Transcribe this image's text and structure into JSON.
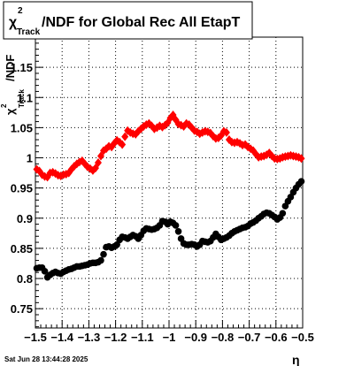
{
  "chart_data": {
    "type": "scatter",
    "title": {
      "chi_symbol": "χ",
      "superscript": "2",
      "subscript": "Track",
      "rest": "/NDF for Global Rec All EtapT"
    },
    "ylabel": {
      "chi_symbol": "χ",
      "superscript": "2",
      "subscript": "Track",
      "rest": "/NDF"
    },
    "xlabel": "η",
    "xlim": [
      -1.5,
      -0.5
    ],
    "ylim": [
      0.718,
      1.2
    ],
    "x_ticks": [
      -1.5,
      -1.4,
      -1.3,
      -1.2,
      -1.1,
      -1,
      -0.9,
      -0.8,
      -0.7,
      -0.6,
      -0.5
    ],
    "x_tick_labels": [
      "−1.5",
      "−1.4",
      "−1.3",
      "−1.2",
      "−1.1",
      "−1",
      "−0.9",
      "−0.8",
      "−0.7",
      "−0.6",
      "−0.5"
    ],
    "y_ticks": [
      0.75,
      0.8,
      0.85,
      0.9,
      0.95,
      1,
      1.05,
      1.1,
      1.15
    ],
    "y_tick_labels": [
      "0.75",
      "0.8",
      "0.85",
      "0.9",
      "0.95",
      "1",
      "1.05",
      "1.1",
      "1.15"
    ],
    "grid": true,
    "footer": "Sat Jun 28 13:44:28 2025",
    "series": [
      {
        "marker": "diamond",
        "color": "#ff0000",
        "x": [
          -1.495,
          -1.485,
          -1.475,
          -1.465,
          -1.455,
          -1.445,
          -1.435,
          -1.425,
          -1.415,
          -1.405,
          -1.395,
          -1.385,
          -1.375,
          -1.365,
          -1.355,
          -1.345,
          -1.335,
          -1.325,
          -1.315,
          -1.305,
          -1.295,
          -1.285,
          -1.275,
          -1.265,
          -1.255,
          -1.245,
          -1.235,
          -1.225,
          -1.215,
          -1.205,
          -1.195,
          -1.185,
          -1.175,
          -1.165,
          -1.155,
          -1.145,
          -1.135,
          -1.125,
          -1.115,
          -1.105,
          -1.095,
          -1.085,
          -1.075,
          -1.065,
          -1.055,
          -1.045,
          -1.035,
          -1.025,
          -1.015,
          -1.005,
          -0.995,
          -0.985,
          -0.975,
          -0.965,
          -0.955,
          -0.945,
          -0.935,
          -0.925,
          -0.915,
          -0.905,
          -0.895,
          -0.885,
          -0.875,
          -0.865,
          -0.855,
          -0.845,
          -0.835,
          -0.825,
          -0.815,
          -0.805,
          -0.795,
          -0.785,
          -0.775,
          -0.765,
          -0.755,
          -0.745,
          -0.735,
          -0.725,
          -0.715,
          -0.705,
          -0.695,
          -0.685,
          -0.675,
          -0.665,
          -0.655,
          -0.645,
          -0.635,
          -0.625,
          -0.615,
          -0.605,
          -0.595,
          -0.585,
          -0.575,
          -0.565,
          -0.555,
          -0.545,
          -0.535,
          -0.525,
          -0.515,
          -0.505
        ],
        "y": [
          0.981,
          0.978,
          0.972,
          0.969,
          0.968,
          0.975,
          0.976,
          0.974,
          0.971,
          0.97,
          0.972,
          0.973,
          0.975,
          0.981,
          0.986,
          0.99,
          0.993,
          0.995,
          0.99,
          0.985,
          0.982,
          0.979,
          0.983,
          0.992,
          1.003,
          1.012,
          1.015,
          1.019,
          1.018,
          1.024,
          1.029,
          1.026,
          1.022,
          1.035,
          1.045,
          1.042,
          1.04,
          1.039,
          1.044,
          1.048,
          1.052,
          1.055,
          1.057,
          1.053,
          1.048,
          1.05,
          1.053,
          1.051,
          1.054,
          1.058,
          1.066,
          1.071,
          1.063,
          1.056,
          1.054,
          1.052,
          1.057,
          1.055,
          1.05,
          1.045,
          1.043,
          1.04,
          1.042,
          1.044,
          1.043,
          1.041,
          1.036,
          1.032,
          1.033,
          1.037,
          1.044,
          1.042,
          1.03,
          1.026,
          1.025,
          1.026,
          1.024,
          1.021,
          1.022,
          1.018,
          1.015,
          1.012,
          1.006,
          1.001,
          1.002,
          1.003,
          1.005,
          1.008,
          1.003,
          0.999,
          0.998,
          0.999,
          1.001,
          1.002,
          1.003,
          1.004,
          1.003,
          1.002,
          1.001,
          0.999
        ]
      },
      {
        "marker": "circle",
        "color": "#000000",
        "x": [
          -1.495,
          -1.485,
          -1.475,
          -1.465,
          -1.455,
          -1.445,
          -1.435,
          -1.425,
          -1.415,
          -1.405,
          -1.395,
          -1.385,
          -1.375,
          -1.365,
          -1.355,
          -1.345,
          -1.335,
          -1.325,
          -1.315,
          -1.305,
          -1.295,
          -1.285,
          -1.275,
          -1.265,
          -1.255,
          -1.245,
          -1.235,
          -1.225,
          -1.215,
          -1.205,
          -1.195,
          -1.185,
          -1.175,
          -1.165,
          -1.155,
          -1.145,
          -1.135,
          -1.125,
          -1.115,
          -1.105,
          -1.095,
          -1.085,
          -1.075,
          -1.065,
          -1.055,
          -1.045,
          -1.035,
          -1.025,
          -1.015,
          -1.005,
          -0.995,
          -0.985,
          -0.975,
          -0.965,
          -0.955,
          -0.945,
          -0.935,
          -0.925,
          -0.915,
          -0.905,
          -0.895,
          -0.885,
          -0.875,
          -0.865,
          -0.855,
          -0.845,
          -0.835,
          -0.825,
          -0.815,
          -0.805,
          -0.795,
          -0.785,
          -0.775,
          -0.765,
          -0.755,
          -0.745,
          -0.735,
          -0.725,
          -0.715,
          -0.705,
          -0.695,
          -0.685,
          -0.675,
          -0.665,
          -0.655,
          -0.645,
          -0.635,
          -0.625,
          -0.615,
          -0.605,
          -0.595,
          -0.585,
          -0.575,
          -0.565,
          -0.555,
          -0.545,
          -0.535,
          -0.525,
          -0.515,
          -0.505
        ],
        "y": [
          0.817,
          0.818,
          0.818,
          0.812,
          0.802,
          0.806,
          0.809,
          0.811,
          0.809,
          0.808,
          0.811,
          0.813,
          0.815,
          0.816,
          0.818,
          0.82,
          0.82,
          0.821,
          0.822,
          0.823,
          0.825,
          0.826,
          0.826,
          0.827,
          0.83,
          0.84,
          0.852,
          0.853,
          0.851,
          0.853,
          0.856,
          0.864,
          0.869,
          0.868,
          0.866,
          0.869,
          0.872,
          0.87,
          0.866,
          0.872,
          0.879,
          0.883,
          0.882,
          0.881,
          0.882,
          0.884,
          0.888,
          0.895,
          0.894,
          0.89,
          0.894,
          0.892,
          0.888,
          0.878,
          0.866,
          0.858,
          0.856,
          0.856,
          0.857,
          0.856,
          0.853,
          0.856,
          0.862,
          0.861,
          0.86,
          0.862,
          0.868,
          0.874,
          0.869,
          0.864,
          0.866,
          0.868,
          0.871,
          0.875,
          0.878,
          0.88,
          0.882,
          0.884,
          0.885,
          0.887,
          0.891,
          0.893,
          0.896,
          0.9,
          0.903,
          0.907,
          0.909,
          0.908,
          0.905,
          0.902,
          0.898,
          0.901,
          0.908,
          0.92,
          0.928,
          0.935,
          0.943,
          0.95,
          0.956,
          0.961
        ]
      }
    ]
  }
}
